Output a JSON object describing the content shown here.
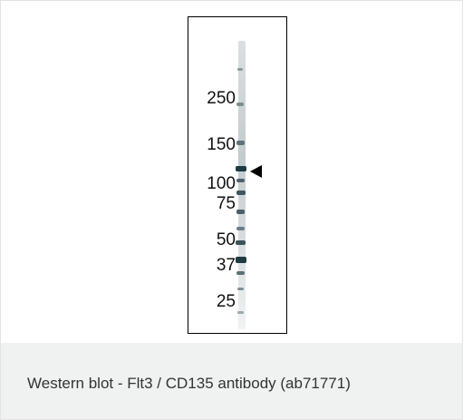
{
  "figure": {
    "markers": [
      {
        "label": "250"
      },
      {
        "label": "150"
      },
      {
        "label": "100"
      },
      {
        "label": "75"
      },
      {
        "label": "50"
      },
      {
        "label": "37"
      },
      {
        "label": "25"
      }
    ]
  },
  "caption": {
    "text": "Western blot - Flt3 / CD135 antibody (ab71771)"
  }
}
